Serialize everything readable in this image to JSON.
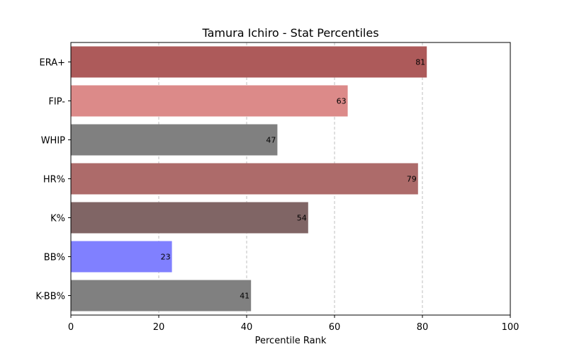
{
  "chart_data": {
    "type": "bar",
    "orientation": "horizontal",
    "title": "Tamura Ichiro - Stat Percentiles",
    "xlabel": "Percentile Rank",
    "ylabel": "",
    "xlim": [
      0,
      100
    ],
    "xticks": [
      0,
      20,
      40,
      60,
      80,
      100
    ],
    "grid": "x-axis, dashed",
    "categories": [
      "ERA+",
      "FIP-",
      "WHIP",
      "HR%",
      "K%",
      "BB%",
      "K-BB%"
    ],
    "values": [
      81,
      63,
      47,
      79,
      54,
      23,
      41
    ],
    "colors": [
      "#ad5a5a",
      "#dc8a89",
      "#808080",
      "#ad6b6a",
      "#806565",
      "#8080ff",
      "#808080"
    ]
  }
}
